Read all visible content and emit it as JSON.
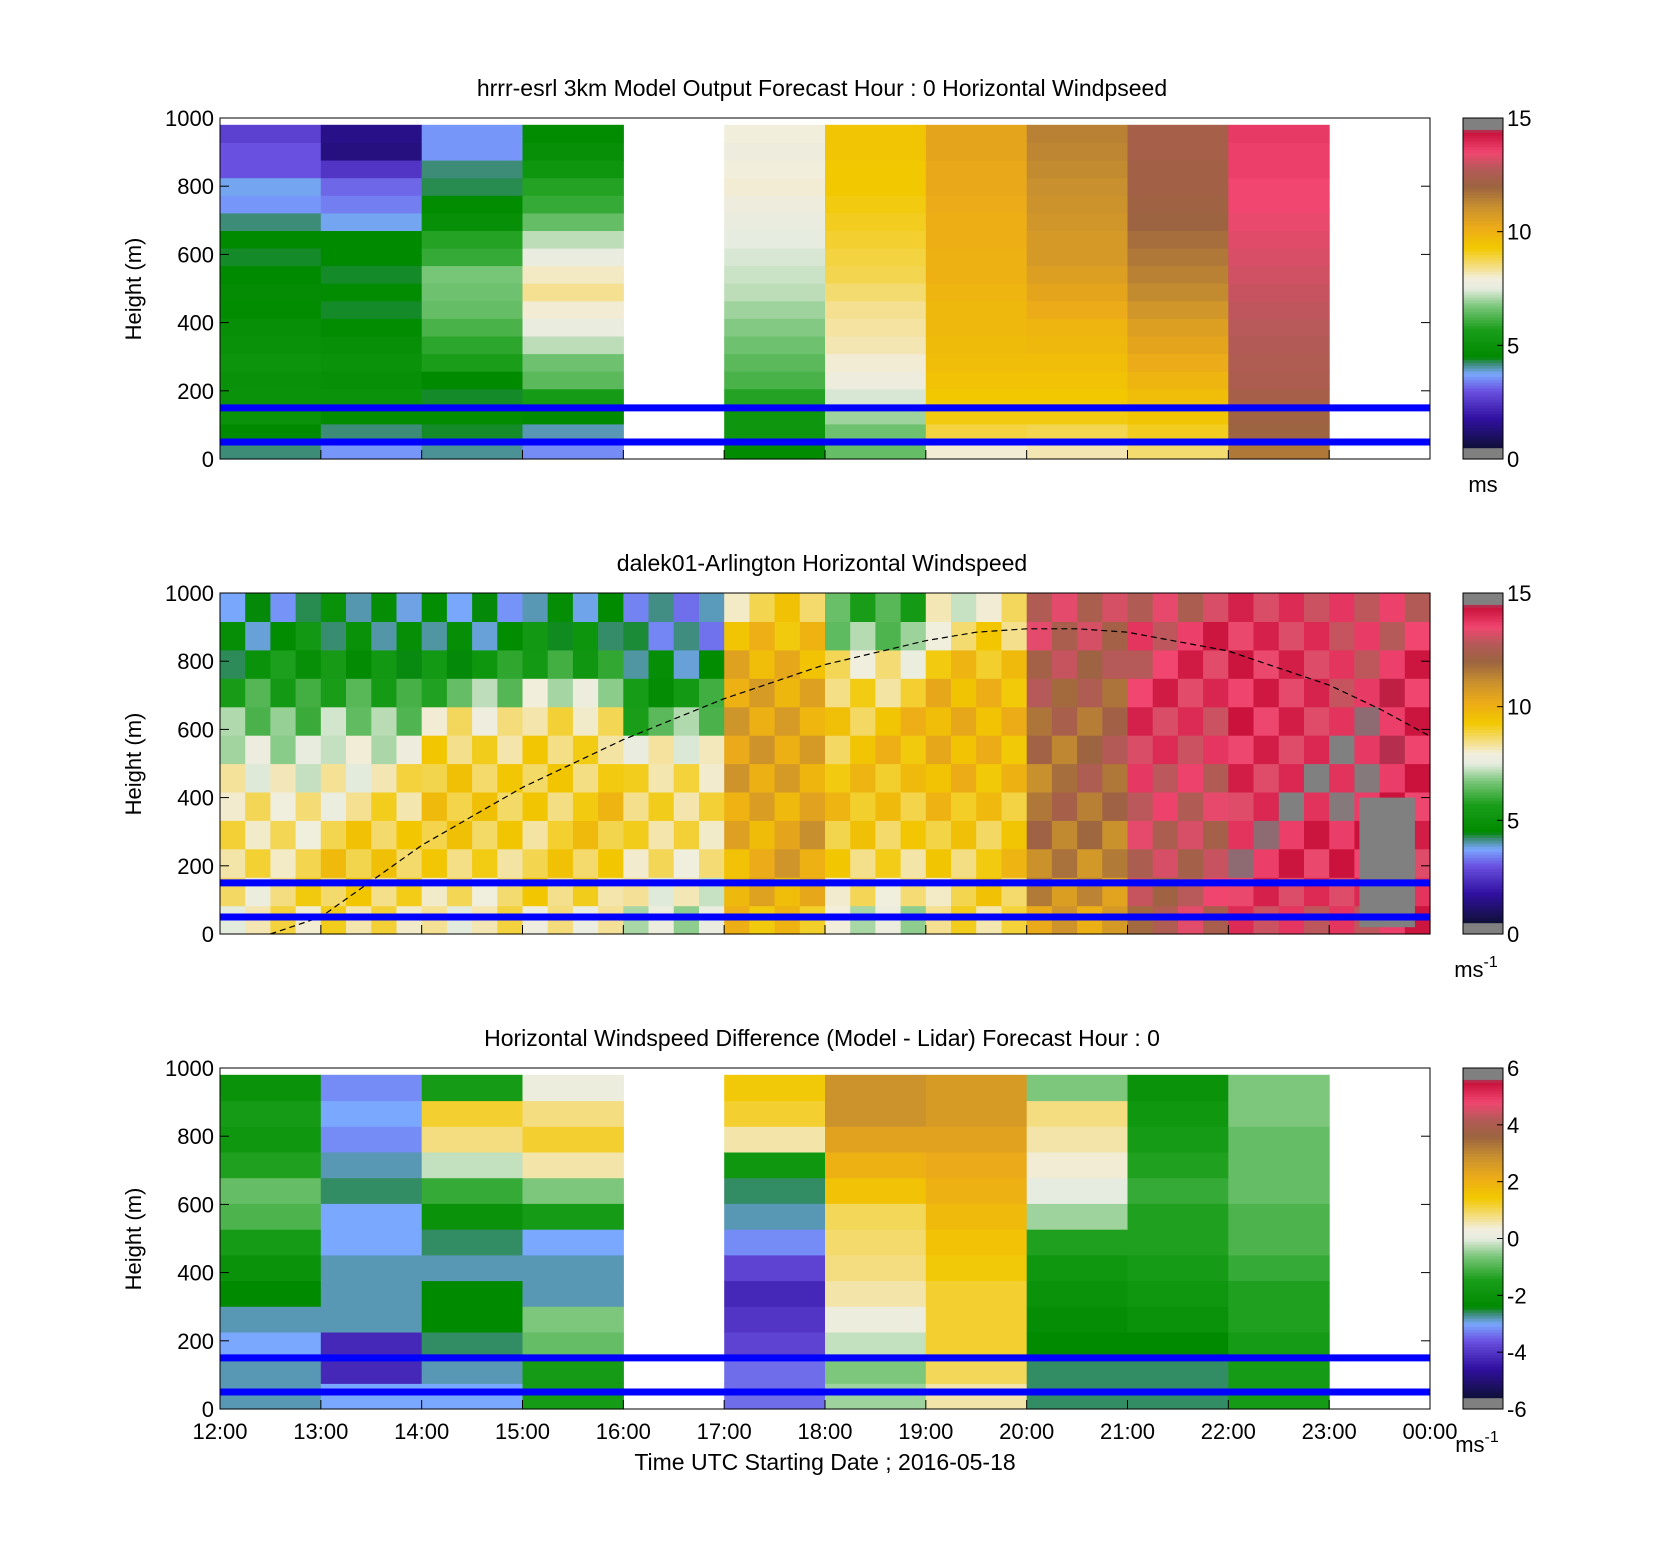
{
  "figure": {
    "time_ticks": [
      "12:00",
      "13:00",
      "14:00",
      "15:00",
      "16:00",
      "17:00",
      "18:00",
      "19:00",
      "20:00",
      "21:00",
      "22:00",
      "23:00",
      "00:00"
    ],
    "x_axis_label": "Time UTC  Starting Date ; 2016-05-18",
    "height_ticks": [
      "0",
      "200",
      "400",
      "600",
      "800",
      "1000"
    ],
    "reference_heights_m": [
      50,
      150
    ],
    "reference_line_color": "#0000ff"
  },
  "chart_data": [
    {
      "type": "heatmap",
      "title": "hrrr-esrl 3km Model Output   Forecast Hour : 0 Horizontal Windpseed",
      "ylabel": "Height (m)",
      "ylim": [
        0,
        1000
      ],
      "x": [
        "12:00",
        "13:00",
        "14:00",
        "15:00",
        "16:00",
        "17:00",
        "18:00",
        "19:00",
        "20:00",
        "21:00",
        "22:00",
        "23:00"
      ],
      "hourly_profiles_bottom_to_top": [
        [
          4.2,
          4.5,
          5.0,
          5.0,
          4.9,
          5.1,
          4.9,
          4.8,
          4.6,
          4.7,
          4.5,
          4.4,
          4.5,
          4.2,
          3.6,
          3.8,
          3.0,
          3.0,
          2.7
        ],
        [
          3.6,
          4.2,
          4.6,
          5.0,
          4.8,
          5.0,
          4.8,
          4.6,
          4.4,
          4.6,
          4.4,
          4.5,
          4.5,
          3.8,
          3.4,
          3.2,
          2.5,
          1.4,
          1.5
        ],
        [
          4.1,
          4.4,
          4.6,
          4.4,
          4.5,
          5.7,
          5.9,
          6.2,
          6.5,
          6.6,
          6.7,
          6.0,
          5.8,
          4.8,
          4.6,
          4.3,
          4.2,
          3.6,
          3.6
        ],
        [
          3.5,
          4.0,
          4.5,
          5.5,
          6.4,
          6.6,
          7.2,
          7.6,
          8.0,
          8.4,
          8.1,
          7.6,
          7.2,
          6.5,
          6.0,
          5.8,
          5.2,
          4.8,
          4.6
        ],
        [
          null,
          null,
          null,
          null,
          null,
          null,
          null,
          null,
          null,
          null,
          null,
          null,
          null,
          null,
          null,
          null,
          null,
          null,
          null
        ],
        [
          4.6,
          5.2,
          5.2,
          5.8,
          6.2,
          6.4,
          6.6,
          6.8,
          7.0,
          7.2,
          7.3,
          7.4,
          7.5,
          7.6,
          7.8,
          8.0,
          7.9,
          7.8,
          7.9
        ],
        [
          6.5,
          6.6,
          7.0,
          7.4,
          7.8,
          8.0,
          8.2,
          8.3,
          8.4,
          8.6,
          8.8,
          8.9,
          9.0,
          9.1,
          9.2,
          9.3,
          9.3,
          9.4,
          9.4
        ],
        [
          8.0,
          8.9,
          9.2,
          9.3,
          9.5,
          9.6,
          9.7,
          9.8,
          9.8,
          9.9,
          10.0,
          10.0,
          10.1,
          10.1,
          10.2,
          10.3,
          10.3,
          10.4,
          10.4
        ],
        [
          8.2,
          8.8,
          9.2,
          9.3,
          9.5,
          9.6,
          9.8,
          9.9,
          10.2,
          10.4,
          10.6,
          10.8,
          10.8,
          10.9,
          11.0,
          11.1,
          11.2,
          11.3,
          11.4
        ],
        [
          8.6,
          9.1,
          9.4,
          9.6,
          9.9,
          10.2,
          10.4,
          10.6,
          10.9,
          11.2,
          11.4,
          11.6,
          11.8,
          12.0,
          12.1,
          12.2,
          12.2,
          12.3,
          12.3
        ],
        [
          11.6,
          12.0,
          12.1,
          12.3,
          12.5,
          12.6,
          12.7,
          12.8,
          12.9,
          13.0,
          13.1,
          13.2,
          13.3,
          13.4,
          13.5,
          13.5,
          13.6,
          13.6,
          13.7
        ],
        [
          null,
          null,
          null,
          null,
          null,
          null,
          null,
          null,
          null,
          null,
          null,
          null,
          null,
          null,
          null,
          null,
          null,
          null,
          null
        ]
      ],
      "colorbar": {
        "min": 0,
        "max": 15,
        "ticks": [
          "0",
          "5",
          "10",
          "15"
        ],
        "unit_label": "ms"
      }
    },
    {
      "type": "heatmap",
      "title": "dalek01-Arlington  Horizontal Windspeed",
      "ylabel": "Height (m)",
      "ylim": [
        0,
        1000
      ],
      "description_of_trend": "low winds 4-6 m/s aloft in the morning, 8-10 m/s near-surface, rising to 12-14 m/s after 20:00; gray block (no data) near 23:00 below 400 m",
      "hourly_profiles_bottom_to_top": [
        [
          8.2,
          8.5,
          8.8,
          8.6,
          8.4,
          7.8,
          7.2,
          6.4,
          5.6,
          5.0,
          4.6,
          4.3
        ],
        [
          8.6,
          8.8,
          9.0,
          8.8,
          8.4,
          8.2,
          7.8,
          7.0,
          6.0,
          5.0,
          4.4,
          4.2
        ],
        [
          8.2,
          8.6,
          9.0,
          9.2,
          9.2,
          9.0,
          8.6,
          8.0,
          6.5,
          5.2,
          4.6,
          4.3
        ],
        [
          8.0,
          8.6,
          8.8,
          9.0,
          9.2,
          9.2,
          9.0,
          8.6,
          7.4,
          5.6,
          4.6,
          4.0
        ],
        [
          7.6,
          8.0,
          8.4,
          8.6,
          8.6,
          8.4,
          7.6,
          6.4,
          5.4,
          4.6,
          4.0,
          3.8
        ],
        [
          9.4,
          9.8,
          10.2,
          10.4,
          10.5,
          10.6,
          10.6,
          10.4,
          10.2,
          9.8,
          9.4,
          8.8
        ],
        [
          7.6,
          8.4,
          8.8,
          9.0,
          9.2,
          9.2,
          9.4,
          9.4,
          9.0,
          8.4,
          6.8,
          6.0
        ],
        [
          8.4,
          8.8,
          9.2,
          9.4,
          9.6,
          9.8,
          9.8,
          9.8,
          9.6,
          9.2,
          8.6,
          8.0
        ],
        [
          10.6,
          11.0,
          11.2,
          11.4,
          11.6,
          11.8,
          12.0,
          12.2,
          12.4,
          12.6,
          12.8,
          12.8
        ],
        [
          12.6,
          12.8,
          13.0,
          13.0,
          13.2,
          13.2,
          13.4,
          13.4,
          13.5,
          13.5,
          13.6,
          13.2
        ],
        [
          13.4,
          13.6,
          13.8,
          13.8,
          14.0,
          14.0,
          14.0,
          14.0,
          13.9,
          13.8,
          13.6,
          13.4
        ],
        [
          13.6,
          13.8,
          14.0,
          14.0,
          14.0,
          14.0,
          13.9,
          13.8,
          13.7,
          13.6,
          13.5,
          13.4
        ]
      ],
      "no_data_regions": [
        {
          "x_start": "23:00",
          "x_end": "23:45",
          "y_range_m": [
            20,
            400
          ]
        }
      ],
      "boundary_layer_curve": {
        "style": "dashed",
        "x_hours_after_1200": [
          0.5,
          1,
          2,
          3,
          4,
          5,
          6,
          7,
          7.5,
          8,
          8.5,
          9,
          10,
          11,
          11.5,
          12
        ],
        "height_m": [
          0,
          50,
          260,
          430,
          570,
          690,
          790,
          860,
          885,
          895,
          895,
          885,
          830,
          730,
          660,
          580
        ]
      },
      "colorbar": {
        "min": 0,
        "max": 15,
        "ticks": [
          "0",
          "5",
          "10",
          "15"
        ],
        "unit_label": "ms",
        "unit_exponent": "-1"
      }
    },
    {
      "type": "heatmap",
      "title": "Horizontal Windspeed Difference (Model - Lidar) Forecast Hour : 0",
      "ylabel": "Height (m)",
      "ylim": [
        0,
        1000
      ],
      "x": [
        "12:00",
        "13:00",
        "14:00",
        "15:00",
        "16:00",
        "17:00",
        "18:00",
        "19:00",
        "20:00",
        "21:00",
        "22:00",
        "23:00"
      ],
      "hourly_profiles_bottom_to_top": [
        [
          -2.8,
          -2.8,
          -3.0,
          -2.8,
          -2.4,
          -2.0,
          -1.6,
          -1.0,
          -0.8,
          -1.4,
          -1.8,
          -1.6,
          -2.0
        ],
        [
          -3.0,
          -4.2,
          -4.2,
          -2.8,
          -2.8,
          -2.8,
          -3.0,
          -3.0,
          -2.6,
          -2.8,
          -3.2,
          -3.0,
          -3.2
        ],
        [
          -3.0,
          -2.8,
          -2.6,
          -2.4,
          -2.4,
          -2.8,
          -2.6,
          -2.0,
          -1.2,
          -0.2,
          0.8,
          1.2,
          -1.6
        ],
        [
          -1.6,
          -1.6,
          -0.8,
          -0.6,
          -2.8,
          -2.8,
          -3.0,
          -1.6,
          -0.6,
          0.6,
          1.2,
          0.8,
          0.2
        ],
        [
          null,
          null,
          null,
          null,
          null,
          null,
          null,
          null,
          null,
          null,
          null,
          null,
          null
        ],
        [
          -3.4,
          -3.4,
          -3.8,
          -4.0,
          -4.2,
          -3.8,
          -3.2,
          -2.8,
          -2.6,
          -1.8,
          0.6,
          1.2,
          1.4
        ],
        [
          -0.4,
          -0.6,
          -0.2,
          0.2,
          0.6,
          0.8,
          0.9,
          1.0,
          1.6,
          2.0,
          2.4,
          2.8,
          2.8
        ],
        [
          0.6,
          1.0,
          1.2,
          1.2,
          1.2,
          1.4,
          1.6,
          1.8,
          2.0,
          2.2,
          2.4,
          2.6,
          2.6
        ],
        [
          -2.6,
          -2.6,
          -2.4,
          -2.2,
          -2.0,
          -1.8,
          -1.4,
          -0.4,
          0.0,
          0.4,
          0.6,
          0.8,
          -0.6
        ],
        [
          -2.6,
          -2.6,
          -2.4,
          -2.0,
          -1.8,
          -1.6,
          -1.4,
          -1.4,
          -1.2,
          -1.4,
          -1.6,
          -1.8,
          -2.0
        ],
        [
          -1.6,
          -1.6,
          -1.6,
          -1.4,
          -1.4,
          -1.2,
          -1.0,
          -1.0,
          -0.8,
          -0.8,
          -0.8,
          -0.6,
          -0.6
        ],
        [
          null,
          null,
          null,
          null,
          null,
          null,
          null,
          null,
          null,
          null,
          null,
          null,
          null
        ]
      ],
      "colorbar": {
        "min": -6,
        "max": 6,
        "ticks": [
          "-6",
          "-4",
          "-2",
          "0",
          "2",
          "4",
          "6"
        ],
        "unit_label": "ms",
        "unit_exponent": "-1"
      }
    }
  ]
}
